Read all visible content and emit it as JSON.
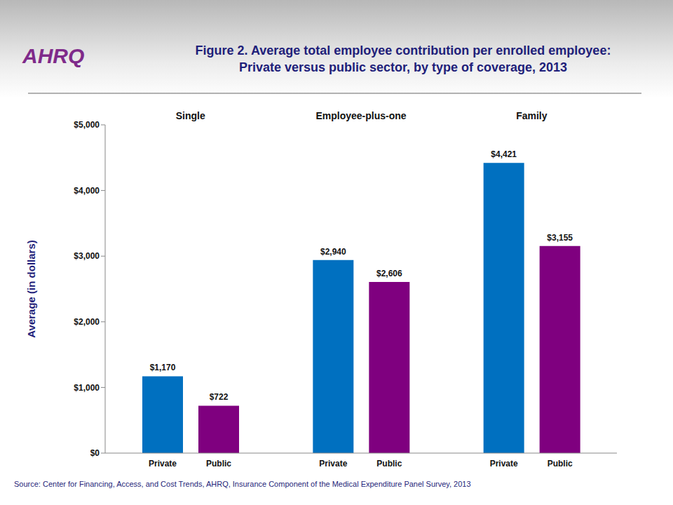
{
  "chart_data": {
    "type": "bar",
    "title": "Figure 2. Average total employee contribution per enrolled employee:\nPrivate versus public sector, by type of coverage, 2013",
    "logo": "AHRQ",
    "y_label": "Average (in dollars)",
    "source": "Source: Center for Financing, Access, and Cost Trends, AHRQ, Insurance Component of the Medical Expenditure Panel Survey, 2013",
    "categories": [
      "Single",
      "Employee-plus-one",
      "Family"
    ],
    "series": [
      {
        "name": "Private",
        "color": "#0070c0",
        "values": [
          1170,
          2940,
          4421
        ],
        "value_labels": [
          "$1,170",
          "$2,940",
          "$4,421"
        ]
      },
      {
        "name": "Public",
        "color": "#7f007f",
        "values": [
          722,
          2606,
          3155
        ],
        "value_labels": [
          "$722",
          "$2,606",
          "$3,155"
        ]
      }
    ],
    "ylim": [
      0,
      5000
    ],
    "yticks": [
      {
        "value": 0,
        "label": "$0"
      },
      {
        "value": 1000,
        "label": "$1,000"
      },
      {
        "value": 2000,
        "label": "$2,000"
      },
      {
        "value": 3000,
        "label": "$3,000"
      },
      {
        "value": 4000,
        "label": "$4,000"
      },
      {
        "value": 5000,
        "label": "$5,000"
      }
    ],
    "grid": false,
    "data_labels": true
  }
}
